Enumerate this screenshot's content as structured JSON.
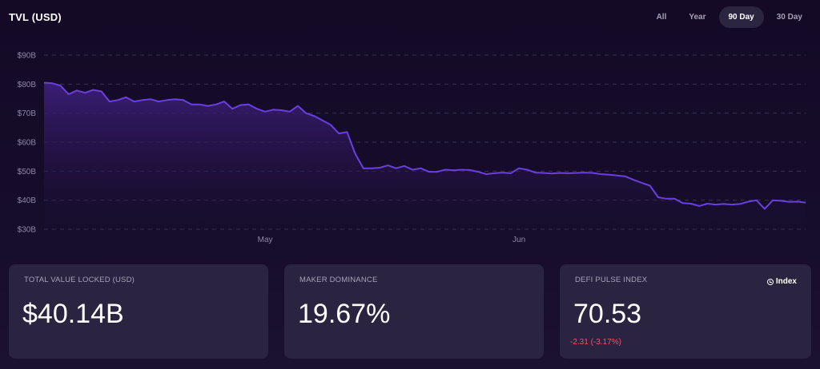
{
  "header": {
    "title": "TVL (USD)"
  },
  "range_tabs": [
    {
      "label": "All"
    },
    {
      "label": "Year"
    },
    {
      "label": "90 Day",
      "active": true
    },
    {
      "label": "30 Day"
    }
  ],
  "chart_data": {
    "type": "area",
    "title": "",
    "xlabel": "",
    "ylabel": "",
    "ylim": [
      30,
      90
    ],
    "yticks": [
      {
        "value": 90,
        "label": "$90B"
      },
      {
        "value": 80,
        "label": "$80B"
      },
      {
        "value": 70,
        "label": "$70B"
      },
      {
        "value": 60,
        "label": "$60B"
      },
      {
        "value": 50,
        "label": "$50B"
      },
      {
        "value": 40,
        "label": "$40B"
      },
      {
        "value": 30,
        "label": "$30B"
      }
    ],
    "xticks": [
      {
        "day": 27,
        "label": "May"
      },
      {
        "day": 58,
        "label": "Jun"
      }
    ],
    "grid": true,
    "line_color": "#6a3fe0",
    "fill_color": "#3a1f73",
    "series": [
      {
        "values": [
          80.5,
          80.3,
          79.5,
          76.5,
          77.8,
          77.0,
          78.0,
          77.5,
          74.0,
          74.5,
          75.5,
          74.0,
          74.5,
          74.8,
          74.0,
          74.5,
          74.8,
          74.5,
          73.0,
          73.0,
          72.5,
          73.0,
          74.0,
          71.5,
          72.8,
          73.0,
          71.5,
          70.5,
          71.2,
          71.0,
          70.5,
          72.5,
          70.0,
          69.0,
          67.5,
          66.0,
          63.0,
          63.5,
          56.0,
          51.0,
          51.0,
          51.2,
          52.0,
          51.0,
          51.8,
          50.5,
          51.0,
          49.8,
          49.8,
          50.5,
          50.3,
          50.5,
          50.4,
          49.8,
          49.0,
          49.3,
          49.5,
          49.3,
          51.0,
          50.5,
          49.5,
          49.4,
          49.2,
          49.4,
          49.3,
          49.4,
          49.5,
          49.4,
          49.0,
          48.8,
          48.5,
          48.2,
          47.0,
          46.0,
          45.0,
          41.0,
          40.5,
          40.5,
          39.0,
          38.8,
          38.0,
          38.8,
          38.5,
          38.7,
          38.5,
          38.7,
          39.5,
          40.0,
          37.0,
          40.0,
          39.8,
          39.4,
          39.5,
          39.2
        ]
      }
    ]
  },
  "cards": [
    {
      "label": "TOTAL VALUE LOCKED (USD)",
      "value": "$40.14B"
    },
    {
      "label": "MAKER DOMINANCE",
      "value": "19.67%"
    },
    {
      "label": "DEFI PULSE INDEX",
      "value": "70.53",
      "change": "-2.31  (-3.17%)",
      "link": "Index",
      "link_icon": "clock-icon",
      "change_color": "#f0546a"
    }
  ]
}
